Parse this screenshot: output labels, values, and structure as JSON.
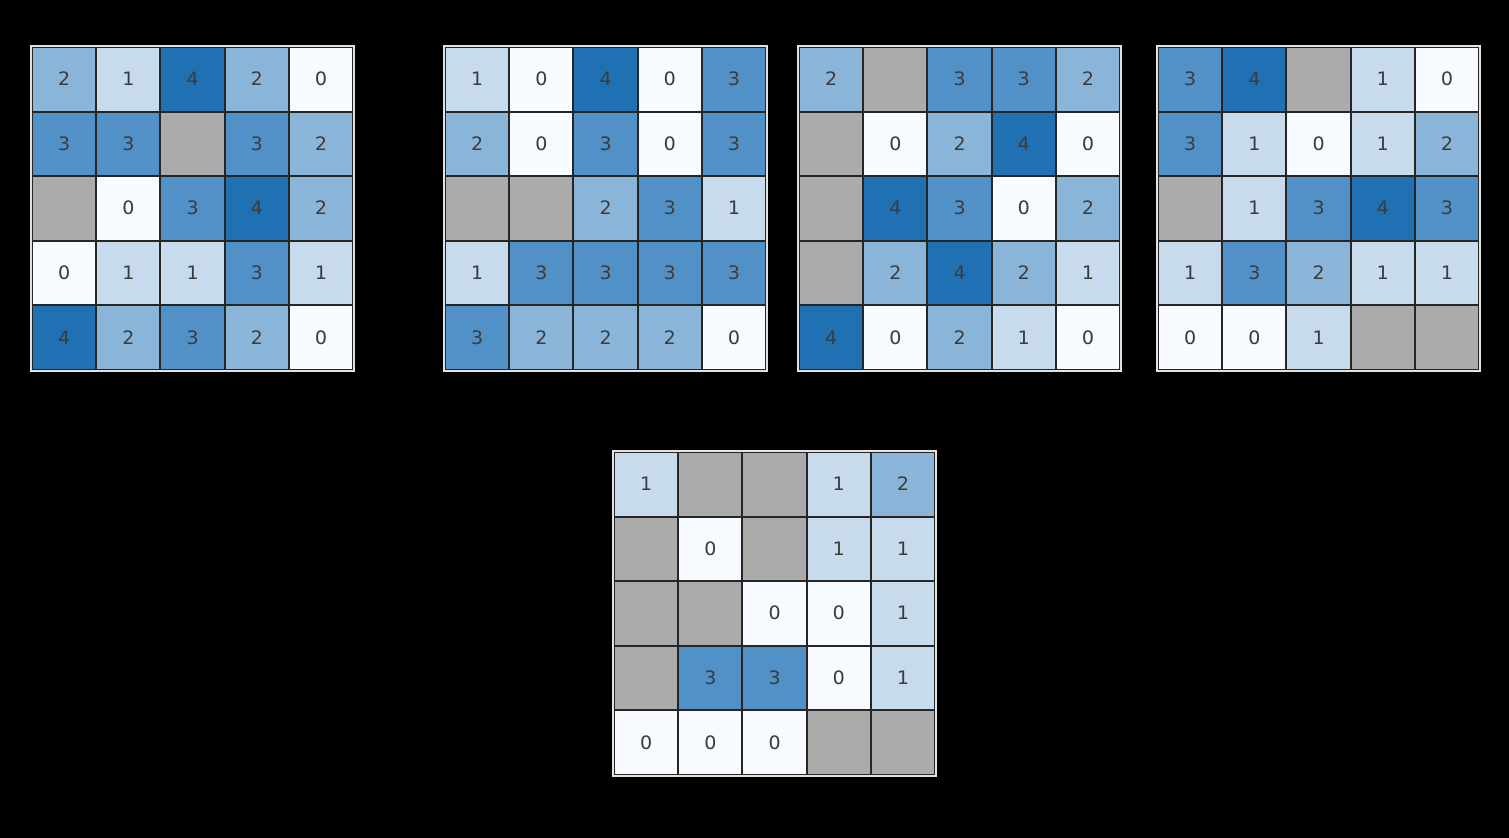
{
  "figure": {
    "background_color": "#000000",
    "grid_line_color": "#262626",
    "outer_border_color": "#e2e2e2",
    "annotation_text_color": "#3b3b3b"
  },
  "palette": {
    "values": [
      "#f7fbff",
      "#c7dbed",
      "#8bb5d8",
      "#5291c7",
      "#2070b4"
    ],
    "masked": "#ababab"
  },
  "chart_data": [
    {
      "type": "heatmap",
      "name": "heatmap-top-1",
      "rows": 5,
      "cols": 5,
      "value_range": [
        0,
        4
      ],
      "matrix": [
        [
          2,
          1,
          4,
          2,
          0
        ],
        [
          3,
          3,
          null,
          3,
          2
        ],
        [
          null,
          0,
          3,
          4,
          2
        ],
        [
          0,
          1,
          1,
          3,
          1
        ],
        [
          4,
          2,
          3,
          2,
          0
        ]
      ]
    },
    {
      "type": "heatmap",
      "name": "heatmap-top-2",
      "rows": 5,
      "cols": 5,
      "value_range": [
        0,
        4
      ],
      "matrix": [
        [
          1,
          0,
          4,
          0,
          3
        ],
        [
          2,
          0,
          3,
          0,
          3
        ],
        [
          null,
          null,
          2,
          3,
          1
        ],
        [
          1,
          3,
          3,
          3,
          3
        ],
        [
          3,
          2,
          2,
          2,
          0
        ]
      ]
    },
    {
      "type": "heatmap",
      "name": "heatmap-top-3",
      "rows": 5,
      "cols": 5,
      "value_range": [
        0,
        4
      ],
      "matrix": [
        [
          2,
          null,
          3,
          3,
          2
        ],
        [
          null,
          0,
          2,
          4,
          0
        ],
        [
          null,
          4,
          3,
          0,
          2
        ],
        [
          null,
          2,
          4,
          2,
          1
        ],
        [
          4,
          0,
          2,
          1,
          0
        ]
      ]
    },
    {
      "type": "heatmap",
      "name": "heatmap-top-4",
      "rows": 5,
      "cols": 5,
      "value_range": [
        0,
        4
      ],
      "matrix": [
        [
          3,
          4,
          null,
          1,
          0
        ],
        [
          3,
          1,
          0,
          1,
          2
        ],
        [
          null,
          1,
          3,
          4,
          3
        ],
        [
          1,
          3,
          2,
          1,
          1
        ],
        [
          0,
          0,
          1,
          null,
          null
        ]
      ]
    },
    {
      "type": "heatmap",
      "name": "heatmap-bottom-center",
      "rows": 5,
      "cols": 5,
      "value_range": [
        0,
        4
      ],
      "matrix": [
        [
          1,
          null,
          null,
          1,
          2
        ],
        [
          null,
          0,
          null,
          1,
          1
        ],
        [
          null,
          null,
          0,
          0,
          1
        ],
        [
          null,
          3,
          3,
          0,
          1
        ],
        [
          0,
          0,
          0,
          null,
          null
        ]
      ]
    }
  ]
}
